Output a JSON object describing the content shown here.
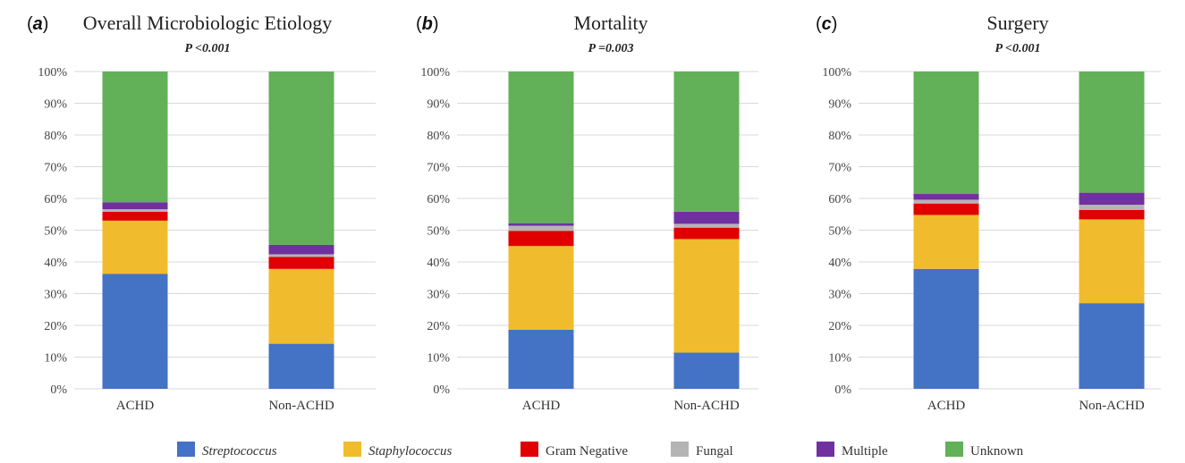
{
  "legend": [
    {
      "name": "Streptococcus",
      "italic": true
    },
    {
      "name": "Staphylococcus",
      "italic": true
    },
    {
      "name": "Gram Negative",
      "italic": false
    },
    {
      "name": "Fungal",
      "italic": false
    },
    {
      "name": "Multiple",
      "italic": false
    },
    {
      "name": "Unknown",
      "italic": false
    }
  ],
  "colors": [
    "#4472c4",
    "#f0bc2d",
    "#e00000",
    "#b4b4b4",
    "#7030a0",
    "#62b058"
  ],
  "chart_data": [
    {
      "type": "bar",
      "stacked": true,
      "panel_label": "a",
      "title": "Overall Microbiologic Etiology",
      "subtitle": "P <0.001",
      "categories": [
        "ACHD",
        "Non-ACHD"
      ],
      "ylim": [
        0,
        100
      ],
      "yticks": [
        "0%",
        "10%",
        "20%",
        "30%",
        "40%",
        "50%",
        "60%",
        "70%",
        "80%",
        "90%",
        "100%"
      ],
      "grid": true,
      "series": [
        {
          "name": "Streptococcus",
          "values": [
            36.2,
            14.2
          ]
        },
        {
          "name": "Staphylococcus",
          "values": [
            16.8,
            23.6
          ]
        },
        {
          "name": "Gram Negative",
          "values": [
            2.8,
            3.8
          ]
        },
        {
          "name": "Fungal",
          "values": [
            0.8,
            0.8
          ]
        },
        {
          "name": "Multiple",
          "values": [
            2.2,
            3.0
          ]
        },
        {
          "name": "Unknown",
          "values": [
            41.2,
            54.6
          ]
        }
      ]
    },
    {
      "type": "bar",
      "stacked": true,
      "panel_label": "b",
      "title": "Mortality",
      "subtitle": "P =0.003",
      "categories": [
        "ACHD",
        "Non-ACHD"
      ],
      "ylim": [
        0,
        100
      ],
      "yticks": [
        "0%",
        "10%",
        "20%",
        "30%",
        "40%",
        "50%",
        "60%",
        "70%",
        "80%",
        "90%",
        "100%"
      ],
      "grid": true,
      "series": [
        {
          "name": "Streptococcus",
          "values": [
            18.6,
            11.4
          ]
        },
        {
          "name": "Staphylococcus",
          "values": [
            26.4,
            35.8
          ]
        },
        {
          "name": "Gram Negative",
          "values": [
            4.8,
            3.6
          ]
        },
        {
          "name": "Fungal",
          "values": [
            1.6,
            1.2
          ]
        },
        {
          "name": "Multiple",
          "values": [
            0.8,
            3.8
          ]
        },
        {
          "name": "Unknown",
          "values": [
            47.8,
            44.2
          ]
        }
      ]
    },
    {
      "type": "bar",
      "stacked": true,
      "panel_label": "c",
      "title": "Surgery",
      "subtitle": "P <0.001",
      "categories": [
        "ACHD",
        "Non-ACHD"
      ],
      "ylim": [
        0,
        100
      ],
      "yticks": [
        "0%",
        "10%",
        "20%",
        "30%",
        "40%",
        "50%",
        "60%",
        "70%",
        "80%",
        "90%",
        "100%"
      ],
      "grid": true,
      "series": [
        {
          "name": "Streptococcus",
          "values": [
            37.8,
            27.0
          ]
        },
        {
          "name": "Staphylococcus",
          "values": [
            17.0,
            26.4
          ]
        },
        {
          "name": "Gram Negative",
          "values": [
            3.6,
            3.0
          ]
        },
        {
          "name": "Fungal",
          "values": [
            1.2,
            1.6
          ]
        },
        {
          "name": "Multiple",
          "values": [
            1.8,
            3.8
          ]
        },
        {
          "name": "Unknown",
          "values": [
            38.6,
            38.2
          ]
        }
      ]
    }
  ]
}
